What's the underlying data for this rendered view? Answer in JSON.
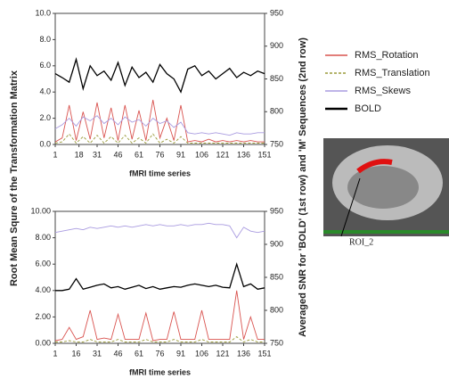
{
  "chart_data": [
    {
      "type": "line",
      "ylabel": "Root Mean Squre of the Transformation Matrix",
      "y2label": "Averaged SNR for 'BOLD' (1st row) and 'M' Sequences (2nd row)",
      "xlabel": "fMRI time series",
      "annotation": "ROI_2",
      "x": [
        1,
        6,
        11,
        16,
        21,
        26,
        31,
        36,
        41,
        46,
        51,
        56,
        61,
        66,
        71,
        76,
        81,
        86,
        91,
        96,
        101,
        106,
        111,
        116,
        121,
        126,
        131,
        136,
        141,
        146,
        151
      ],
      "xlim": [
        1,
        151
      ],
      "xticks": [
        1,
        18,
        31,
        46,
        61,
        76,
        91,
        106,
        121,
        136,
        151
      ],
      "ylim": [
        0,
        10
      ],
      "yticks": [
        {
          "value": 0,
          "label": "0.0"
        },
        {
          "value": 2,
          "label": "2.0"
        },
        {
          "value": 4,
          "label": "4.0"
        },
        {
          "value": 6,
          "label": "6.0"
        },
        {
          "value": 8,
          "label": "8.0"
        },
        {
          "value": 10,
          "label": "10.0"
        }
      ],
      "y2lim": [
        750,
        950
      ],
      "y2ticks": [
        750,
        800,
        850,
        900,
        950
      ],
      "series": [
        {
          "name": "RMS_Rotation",
          "color": "#d9534f",
          "values": [
            0.2,
            0.5,
            3.0,
            0.3,
            2.5,
            0.4,
            3.2,
            0.5,
            2.8,
            0.3,
            3.0,
            0.4,
            2.6,
            0.3,
            3.4,
            0.5,
            2.0,
            0.3,
            3.0,
            0.2,
            0.3,
            0.2,
            0.4,
            0.2,
            0.3,
            0.2,
            0.3,
            0.2,
            0.3,
            0.2,
            0.2
          ]
        },
        {
          "name": "RMS_Translation",
          "color": "#9a9a3a",
          "values": [
            0.1,
            0.2,
            0.8,
            0.1,
            0.6,
            0.1,
            0.7,
            0.1,
            0.6,
            0.1,
            0.7,
            0.1,
            0.5,
            0.1,
            0.8,
            0.1,
            0.4,
            0.1,
            0.6,
            0.1,
            0.1,
            0.1,
            0.1,
            0.1,
            0.1,
            0.1,
            0.1,
            0.1,
            0.1,
            0.1,
            0.1
          ]
        },
        {
          "name": "RMS_Skews",
          "color": "#a99be0",
          "values": [
            1.2,
            1.5,
            2.0,
            1.4,
            2.1,
            1.8,
            2.2,
            1.6,
            2.0,
            1.5,
            2.1,
            1.7,
            1.9,
            1.4,
            2.0,
            1.6,
            1.8,
            1.3,
            1.7,
            0.9,
            0.8,
            0.9,
            0.8,
            0.9,
            0.8,
            0.7,
            0.9,
            0.8,
            0.8,
            0.9,
            0.9
          ]
        },
        {
          "name": "BOLD",
          "color": "#000000",
          "axis": "y2",
          "values": [
            858,
            852,
            845,
            880,
            835,
            870,
            855,
            862,
            848,
            875,
            840,
            868,
            852,
            860,
            845,
            872,
            858,
            850,
            830,
            865,
            870,
            855,
            862,
            850,
            858,
            866,
            852,
            860,
            855,
            862,
            858
          ]
        }
      ]
    },
    {
      "type": "line",
      "xlabel": "fMRI time series",
      "x": [
        1,
        6,
        11,
        16,
        21,
        26,
        31,
        36,
        41,
        46,
        51,
        56,
        61,
        66,
        71,
        76,
        81,
        86,
        91,
        96,
        101,
        106,
        111,
        116,
        121,
        126,
        131,
        136,
        141,
        146,
        151
      ],
      "xlim": [
        1,
        151
      ],
      "xticks": [
        1,
        16,
        31,
        46,
        61,
        76,
        91,
        106,
        121,
        136,
        151
      ],
      "ylim": [
        0,
        10
      ],
      "yticks": [
        {
          "value": 0,
          "label": "0.00"
        },
        {
          "value": 2,
          "label": "2.00"
        },
        {
          "value": 4,
          "label": "4.00"
        },
        {
          "value": 6,
          "label": "6.00"
        },
        {
          "value": 8,
          "label": "8.00"
        },
        {
          "value": 10,
          "label": "10.00"
        }
      ],
      "y2lim": [
        750,
        950
      ],
      "y2ticks": [
        750,
        800,
        850,
        900,
        950
      ],
      "series": [
        {
          "name": "RMS_Rotation",
          "color": "#d9534f",
          "values": [
            0.2,
            0.3,
            1.2,
            0.3,
            0.5,
            2.5,
            0.3,
            0.4,
            0.3,
            2.2,
            0.3,
            0.3,
            0.3,
            2.3,
            0.2,
            0.3,
            0.3,
            2.4,
            0.3,
            0.3,
            0.3,
            2.5,
            0.3,
            0.3,
            0.3,
            0.3,
            4.0,
            0.3,
            2.0,
            0.3,
            0.3
          ]
        },
        {
          "name": "RMS_Translation",
          "color": "#9a9a3a",
          "values": [
            0.1,
            0.1,
            0.2,
            0.1,
            0.1,
            0.3,
            0.1,
            0.1,
            0.1,
            0.3,
            0.1,
            0.1,
            0.1,
            0.3,
            0.1,
            0.1,
            0.1,
            0.3,
            0.1,
            0.1,
            0.1,
            0.3,
            0.1,
            0.1,
            0.1,
            0.1,
            0.5,
            0.1,
            0.3,
            0.1,
            0.1
          ]
        },
        {
          "name": "RMS_Skews",
          "color": "#a99be0",
          "values": [
            8.4,
            8.5,
            8.6,
            8.7,
            8.6,
            8.8,
            8.7,
            8.8,
            8.9,
            8.8,
            8.9,
            8.8,
            8.9,
            9.0,
            8.9,
            9.0,
            8.9,
            8.9,
            9.0,
            8.9,
            9.0,
            9.0,
            9.1,
            9.0,
            9.0,
            8.9,
            8.0,
            8.8,
            8.5,
            8.4,
            8.5
          ]
        },
        {
          "name": "BOLD",
          "color": "#000000",
          "axis": "y2",
          "values": [
            830,
            830,
            832,
            848,
            832,
            835,
            838,
            840,
            834,
            836,
            832,
            835,
            838,
            833,
            836,
            832,
            834,
            836,
            835,
            838,
            840,
            838,
            836,
            838,
            835,
            834,
            870,
            836,
            840,
            832,
            834
          ]
        }
      ]
    }
  ]
}
